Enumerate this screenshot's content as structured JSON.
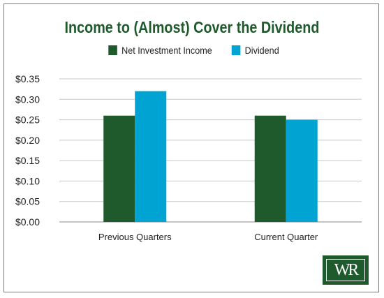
{
  "chart_data": {
    "type": "bar",
    "title": "Income to (Almost) Cover the Dividend",
    "categories": [
      "Previous Quarters",
      "Current Quarter"
    ],
    "series": [
      {
        "name": "Net Investment Income",
        "values": [
          0.26,
          0.26
        ],
        "color": "#1f5a2c"
      },
      {
        "name": "Dividend",
        "values": [
          0.32,
          0.25
        ],
        "color": "#00a3d1"
      }
    ],
    "yticks": [
      "$0.00",
      "$0.05",
      "$0.10",
      "$0.15",
      "$0.20",
      "$0.25",
      "$0.30",
      "$0.35"
    ],
    "ylim": [
      0,
      0.35
    ],
    "grid": true,
    "legend": "top-center"
  },
  "logo": {
    "text": "WR",
    "color": "#1f5a2c"
  }
}
